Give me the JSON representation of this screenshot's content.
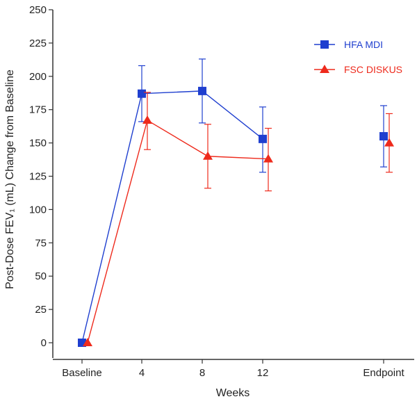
{
  "chart_data": {
    "type": "line",
    "xlabel": "Weeks",
    "ylabel": "Post-Dose FEV₁ (mL) Change from Baseline",
    "ylim": [
      0,
      250
    ],
    "yticks": [
      0,
      25,
      50,
      75,
      100,
      125,
      150,
      175,
      200,
      225,
      250
    ],
    "categories": [
      "Baseline",
      "4",
      "8",
      "12",
      "Endpoint"
    ],
    "grid": false,
    "legend_position": "top-right",
    "series": [
      {
        "name": "HFA MDI",
        "color": "#1f3fcf",
        "marker": "square",
        "values": [
          0,
          187,
          189,
          153,
          155
        ],
        "err_low": [
          0,
          166,
          165,
          128,
          132
        ],
        "err_high": [
          0,
          208,
          213,
          177,
          178
        ],
        "connected_points": 4
      },
      {
        "name": "FSC DISKUS",
        "color": "#ee2a1c",
        "marker": "triangle",
        "values": [
          0,
          167,
          140,
          138,
          150
        ],
        "err_low": [
          0,
          145,
          116,
          114,
          128
        ],
        "err_high": [
          0,
          188,
          164,
          161,
          172
        ],
        "connected_points": 4
      }
    ]
  }
}
